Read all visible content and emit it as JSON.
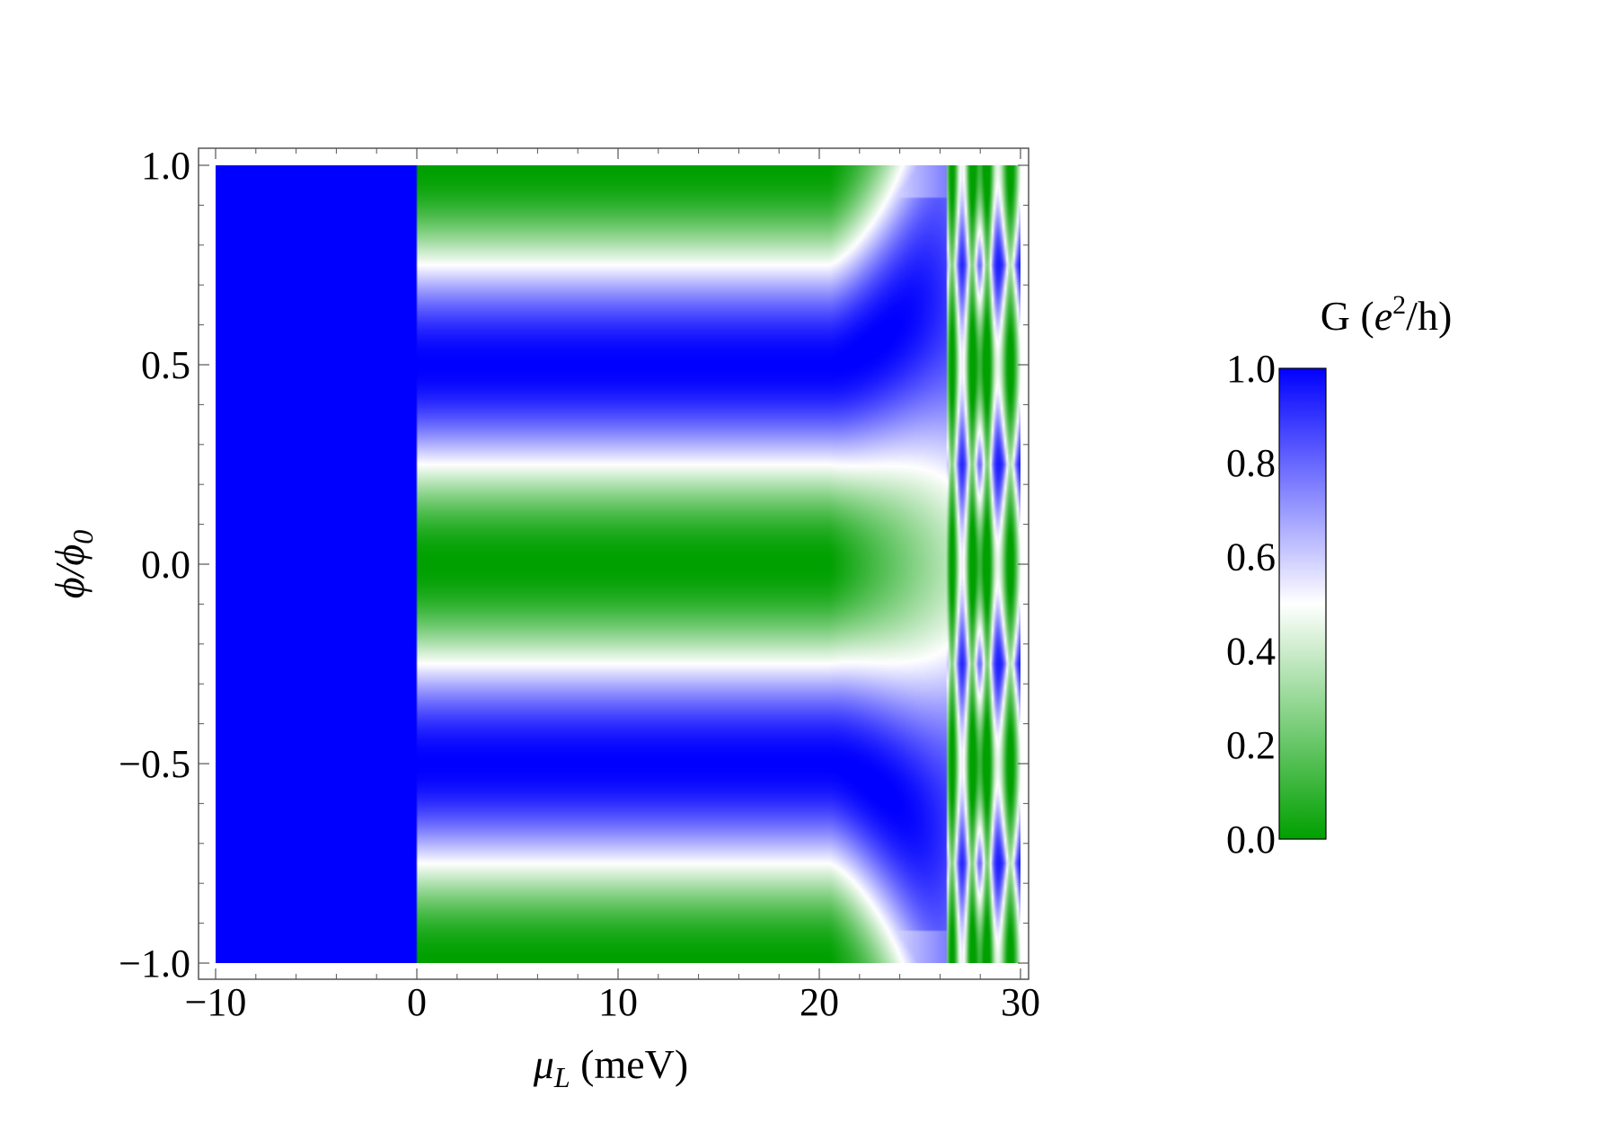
{
  "chart_data": {
    "type": "heatmap",
    "x_axis": {
      "label_main": "μ",
      "label_sub": "L",
      "label_rest": " (meV)",
      "range": [
        -10,
        30
      ],
      "ticks": [
        -10,
        0,
        10,
        20,
        30
      ],
      "tick_labels": [
        "−10",
        "0",
        "10",
        "20",
        "30"
      ]
    },
    "y_axis": {
      "label_main": "ϕ/ϕ",
      "label_sub": "0",
      "range": [
        -1.0,
        1.0
      ],
      "ticks": [
        -1.0,
        -0.5,
        0.0,
        0.5,
        1.0
      ],
      "tick_labels": [
        "−1.0",
        "−0.5",
        "0.0",
        "0.5",
        "1.0"
      ]
    },
    "colorbar": {
      "title_prefix": "G (",
      "title_var": "e",
      "title_sup": "2",
      "title_suffix": "/h)",
      "range": [
        0.0,
        1.0
      ],
      "ticks": [
        0.0,
        0.2,
        0.4,
        0.6,
        0.8,
        1.0
      ],
      "tick_labels": [
        "0.0",
        "0.2",
        "0.4",
        "0.6",
        "0.8",
        "1.0"
      ],
      "color_low": "#00a000",
      "color_mid": "#ffffff",
      "color_high": "#0000ff"
    },
    "regions": [
      {
        "x_range": [
          -10,
          0
        ],
        "G": 1.0,
        "description": "uniform G = 1"
      },
      {
        "x_range": [
          0,
          20.5
        ],
        "G_formula": "0.5 - 0.5*cos(2*pi*phi)"
      },
      {
        "x_range": [
          20.5,
          30
        ],
        "G": "oscillatory pattern with resonances near 26.5, 27.5, 28.3, 29.5 meV"
      }
    ]
  }
}
